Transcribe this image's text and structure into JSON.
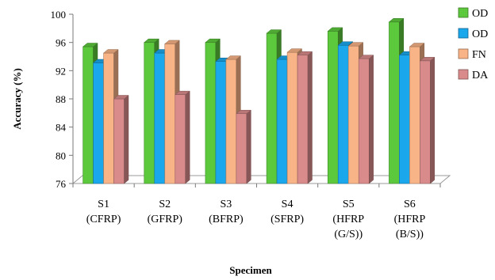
{
  "chart_data": {
    "type": "bar",
    "categories": [
      [
        "S1",
        "(CFRP)"
      ],
      [
        "S2",
        "(GFRP)"
      ],
      [
        "S3",
        "(BFRP)"
      ],
      [
        "S4",
        "(SFRP)"
      ],
      [
        "S5",
        "(HFRP",
        "(G/S))"
      ],
      [
        "S6",
        "(HFRP",
        "(B/S))"
      ]
    ],
    "series": [
      {
        "name": "OD",
        "color": "#5cc83c",
        "values": [
          95.4,
          96.0,
          96.0,
          97.3,
          97.6,
          98.9
        ]
      },
      {
        "name": "OD",
        "color": "#1aa7ec",
        "values": [
          93.1,
          94.5,
          93.3,
          93.6,
          95.6,
          94.2
        ]
      },
      {
        "name": "FN",
        "color": "#f8b386",
        "values": [
          94.5,
          95.8,
          93.6,
          94.6,
          95.5,
          95.4
        ]
      },
      {
        "name": "DA",
        "color": "#d98b8b",
        "values": [
          88.0,
          88.6,
          85.9,
          94.2,
          93.7,
          93.4
        ]
      }
    ],
    "xlabel": "Specimen",
    "ylabel": "Accuracy (%)",
    "ylim": [
      76,
      100
    ],
    "yticks": [
      76,
      80,
      84,
      88,
      92,
      96,
      100
    ],
    "legend_position": "right"
  }
}
